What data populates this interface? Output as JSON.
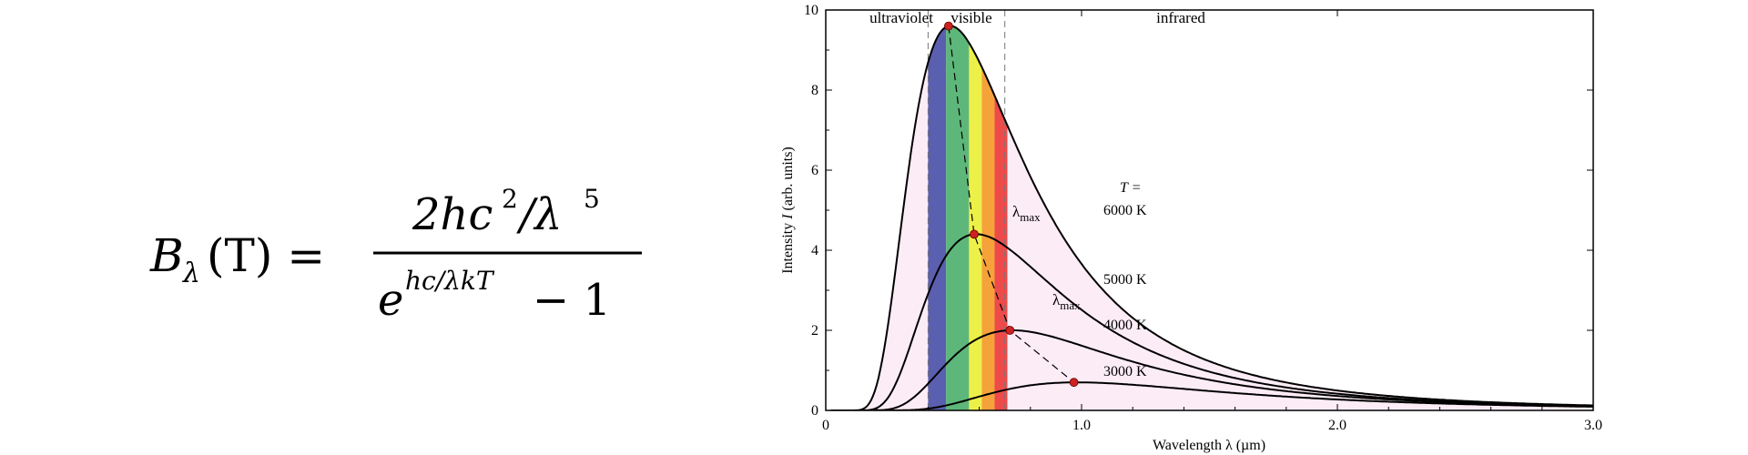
{
  "formula": {
    "lhs_symbol": "B",
    "lhs_subscript": "λ",
    "lhs_arg": "(T) =",
    "num_a": "2hc",
    "num_exp": "2",
    "num_b": "/λ",
    "num_exp2": "5",
    "den_base": "e",
    "den_exp": "hc/λkT",
    "den_tail": "− 1"
  },
  "chart_data": {
    "type": "line",
    "title": "",
    "xlabel": "Wavelength  λ  (µm)",
    "ylabel_main": "Intensity",
    "ylabel_symbol": "I",
    "ylabel_units": "(arb. units)",
    "xlim": [
      0,
      3.0
    ],
    "ylim": [
      0,
      10
    ],
    "x_ticks": [
      0,
      1.0,
      2.0,
      3.0
    ],
    "x_tick_labels": [
      "0",
      "1.0",
      "2.0",
      "3.0"
    ],
    "y_ticks": [
      0,
      2,
      4,
      6,
      8,
      10
    ],
    "y_tick_labels": [
      "0",
      "2",
      "4",
      "6",
      "8",
      "10"
    ],
    "grid": false,
    "legend_title": "T =",
    "regions": [
      {
        "label": "ultraviolet",
        "x_from": 0,
        "x_to": 0.4
      },
      {
        "label": "visible",
        "x_from": 0.4,
        "x_to": 0.7
      },
      {
        "label": "infrared",
        "x_from": 0.7,
        "x_to": 3.0
      }
    ],
    "visible_bands": [
      {
        "from": 0.4,
        "to": 0.47,
        "color": "#5b5fb0"
      },
      {
        "from": 0.47,
        "to": 0.56,
        "color": "#5eb77a"
      },
      {
        "from": 0.56,
        "to": 0.61,
        "color": "#eef04a"
      },
      {
        "from": 0.61,
        "to": 0.66,
        "color": "#f5a23a"
      },
      {
        "from": 0.66,
        "to": 0.71,
        "color": "#ee4a4a"
      }
    ],
    "colors": {
      "fill": "#fcecf6",
      "curve": "#000000",
      "peak_marker": "#cc2222",
      "region_divider": "#777777"
    },
    "series": [
      {
        "name": "6000 K",
        "temperature_K": 6000,
        "peak_x": 0.48,
        "peak_y": 9.6
      },
      {
        "name": "5000 K",
        "temperature_K": 5000,
        "peak_x": 0.58,
        "peak_y": 4.4
      },
      {
        "name": "4000 K",
        "temperature_K": 4000,
        "peak_x": 0.72,
        "peak_y": 2.0
      },
      {
        "name": "3000 K",
        "temperature_K": 3000,
        "peak_x": 0.97,
        "peak_y": 0.7
      }
    ],
    "annotations": [
      {
        "text": "λ",
        "sub": "max",
        "points_to": "5000 K"
      },
      {
        "text": "λ",
        "sub": "max",
        "points_to": "4000 K"
      }
    ]
  }
}
